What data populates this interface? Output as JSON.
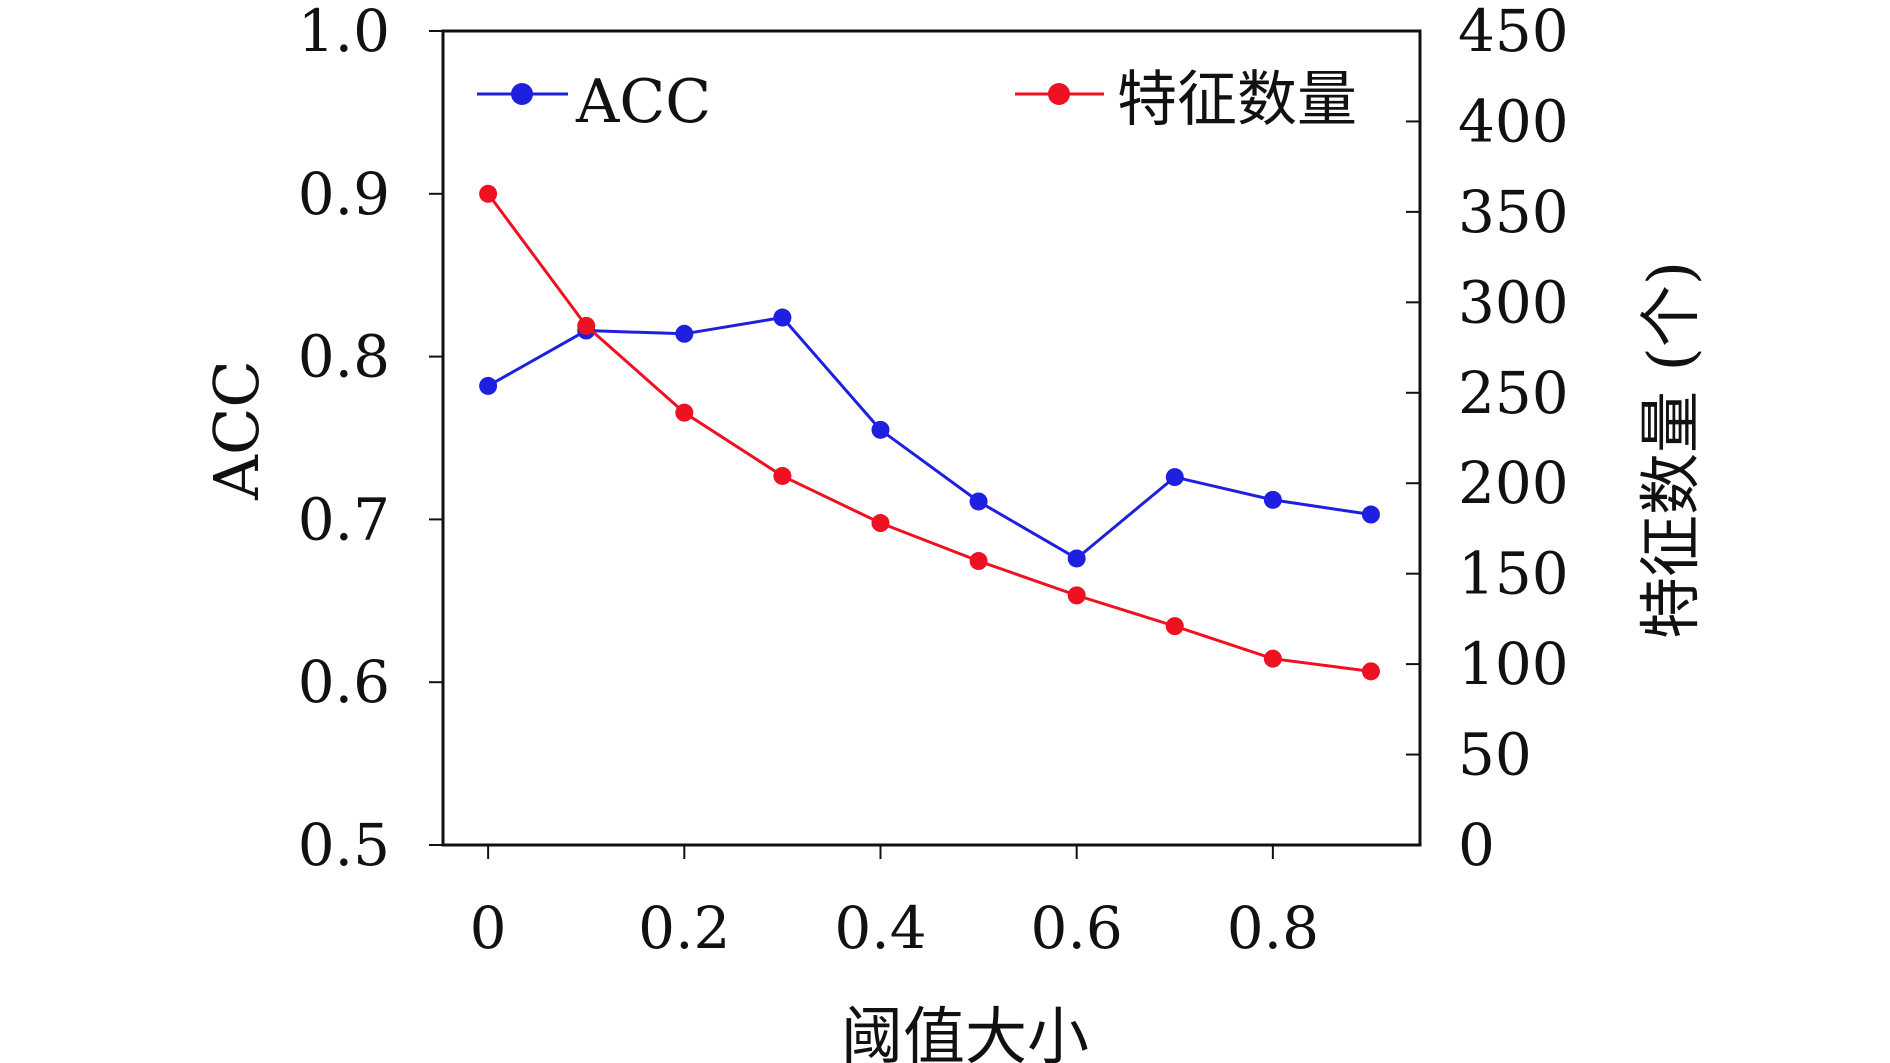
{
  "chart_data": {
    "type": "line",
    "x": [
      0,
      0.1,
      0.2,
      0.3,
      0.4,
      0.5,
      0.6,
      0.7,
      0.8,
      0.9
    ],
    "xlim": [
      -0.046,
      0.95
    ],
    "x_ticks": [
      "0",
      "0.2",
      "0.4",
      "0.6",
      "0.8"
    ],
    "x_tick_values": [
      0,
      0.2,
      0.4,
      0.6,
      0.8
    ],
    "xlabel": "阈值大小",
    "ylabel": "ACC",
    "ylim": [
      0.5,
      1.0
    ],
    "y_ticks": [
      "0.5",
      "0.6",
      "0.7",
      "0.8",
      "0.9",
      "1.0"
    ],
    "y_tick_values": [
      0.5,
      0.6,
      0.7,
      0.8,
      0.9,
      1.0
    ],
    "y2label": "特征数量 (个)",
    "y2lim": [
      0,
      450
    ],
    "y2_ticks": [
      "0",
      "50",
      "100",
      "150",
      "200",
      "250",
      "300",
      "350",
      "400",
      "450"
    ],
    "y2_tick_values": [
      0,
      50,
      100,
      150,
      200,
      250,
      300,
      350,
      400,
      450
    ],
    "legend_position": "top",
    "series": [
      {
        "name": "ACC",
        "axis": "left",
        "color": "#1f1fe0",
        "values": [
          0.782,
          0.816,
          0.814,
          0.824,
          0.755,
          0.711,
          0.676,
          0.726,
          0.712,
          0.703
        ]
      },
      {
        "name": "特征数量",
        "axis": "right",
        "color": "#ee1122",
        "values": [
          360,
          287,
          239,
          204,
          178,
          157,
          138,
          121,
          103,
          96
        ]
      }
    ]
  }
}
